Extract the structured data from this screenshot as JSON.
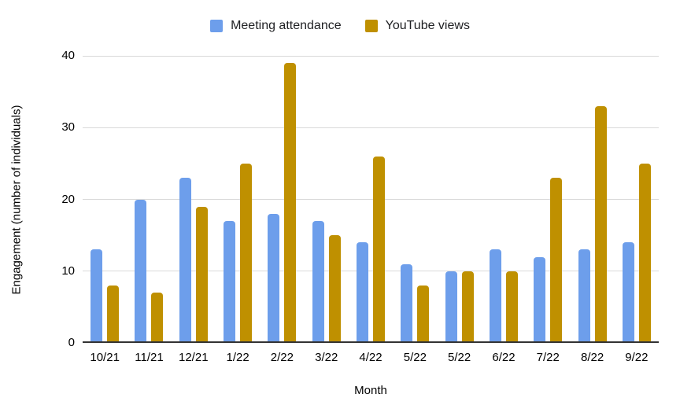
{
  "legend": {
    "items": [
      {
        "label": "Meeting attendance",
        "color": "#6d9eeb"
      },
      {
        "label": "YouTube views",
        "color": "#bf9000"
      }
    ]
  },
  "chart_data": {
    "type": "bar",
    "title": "",
    "categories": [
      "10/21",
      "11/21",
      "12/21",
      "1/22",
      "2/22",
      "3/22",
      "4/22",
      "5/22",
      "5/22",
      "6/22",
      "7/22",
      "8/22",
      "9/22"
    ],
    "series": [
      {
        "name": "Meeting attendance",
        "color": "#6d9eeb",
        "values": [
          13,
          20,
          23,
          17,
          18,
          17,
          14,
          11,
          10,
          13,
          12,
          13,
          14
        ]
      },
      {
        "name": "YouTube views",
        "color": "#bf9000",
        "values": [
          8,
          7,
          19,
          25,
          39,
          15,
          26,
          8,
          10,
          10,
          23,
          33,
          25
        ]
      }
    ],
    "xlabel": "Month",
    "ylabel": "Engagement (number of individuals)",
    "ylim": [
      0,
      40
    ],
    "yticks": [
      0,
      10,
      20,
      30,
      40
    ],
    "grid": true,
    "legend_position": "top"
  }
}
